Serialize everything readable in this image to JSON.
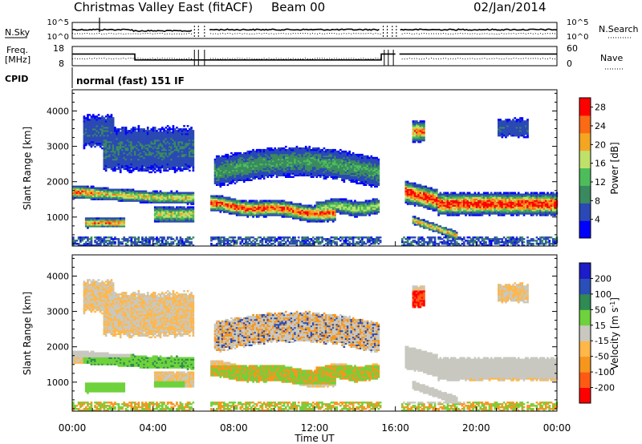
{
  "header": {
    "title": "Christmas Valley East (fitACF)",
    "beam": "Beam 00",
    "date": "02/Jan/2014"
  },
  "chart_data": [
    {
      "id": "nsky-nsearch",
      "type": "line",
      "left_label": "N.Sky",
      "right_label": "N.Search",
      "left_ticks": [
        "10^5",
        "10^0"
      ],
      "right_ticks": [
        "10^5",
        "10^0"
      ]
    },
    {
      "id": "freq-nave",
      "type": "line",
      "left_label_1": "Freq.",
      "left_label_2": "[MHz]",
      "right_label": "Nave",
      "left_ticks": [
        18,
        8
      ],
      "right_ticks": [
        60,
        0
      ],
      "freq_mhz": {
        "segments": [
          {
            "start_h": 0.0,
            "end_h": 3.1,
            "value": 14.3
          },
          {
            "start_h": 3.1,
            "end_h": 15.3,
            "value": 10.6
          },
          {
            "start_h": 15.3,
            "end_h": 16.0,
            "value": 14.3
          },
          {
            "start_h": 16.2,
            "end_h": 24.0,
            "value": 14.3
          }
        ]
      }
    },
    {
      "id": "cpid",
      "label": "CPID",
      "mode": "normal (fast) 151 IF"
    },
    {
      "id": "power",
      "type": "heatmap",
      "ylabel": "Slant Range [km]",
      "yticks": [
        1000,
        2000,
        3000,
        4000
      ],
      "ylim": [
        180,
        4600
      ],
      "colorbar_label": "Power [dB]",
      "colorbar_ticks": [
        4,
        8,
        12,
        16,
        20,
        24,
        28
      ],
      "colorbar_range": [
        0,
        30
      ],
      "colors": [
        "#0000ff",
        "#2a49b4",
        "#3a8a5f",
        "#4dbd5c",
        "#bfe16a",
        "#f4a623",
        "#fb6a15",
        "#ff0000"
      ]
    },
    {
      "id": "velocity",
      "type": "heatmap",
      "ylabel": "Slant Range [km]",
      "yticks": [
        1000,
        2000,
        3000,
        4000
      ],
      "ylim": [
        180,
        4600
      ],
      "colorbar_label": "Velocity [m s^-1]",
      "colorbar_ticks": [
        -200,
        -100,
        -50,
        -15,
        15,
        50,
        100,
        200
      ],
      "colorbar_range": [
        -250,
        250
      ],
      "colors": [
        "#ff0000",
        "#ff5a14",
        "#f7961e",
        "#ffb74a",
        "#c8c8c0",
        "#6ed23c",
        "#2f8a54",
        "#2b4fb8",
        "#1c1cc8"
      ]
    }
  ],
  "xaxis": {
    "label": "Time UT",
    "ticks": [
      "00:00",
      "04:00",
      "08:00",
      "12:00",
      "16:00",
      "20:00",
      "00:00"
    ],
    "xlim_hours": [
      0,
      24
    ]
  }
}
